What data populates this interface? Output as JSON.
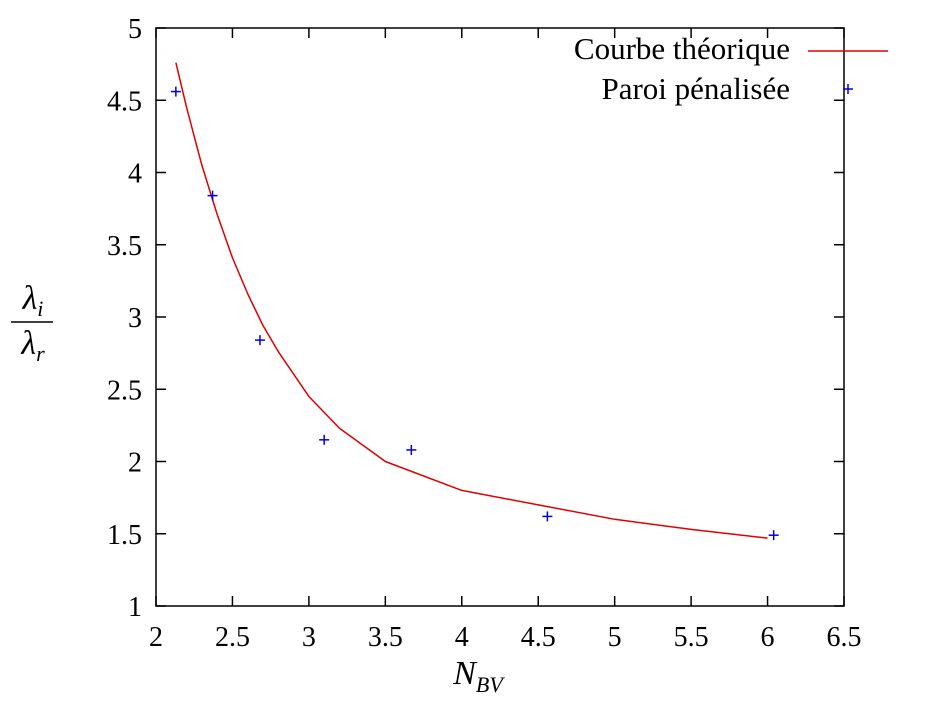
{
  "chart_data": {
    "type": "line",
    "title": "",
    "xlim": [
      2,
      6.5
    ],
    "ylim": [
      1,
      5
    ],
    "x_ticks": [
      2,
      2.5,
      3,
      3.5,
      4,
      4.5,
      5,
      5.5,
      6,
      6.5
    ],
    "y_ticks": [
      1,
      1.5,
      2,
      2.5,
      3,
      3.5,
      4,
      4.5,
      5
    ],
    "x_tick_labels": [
      "2",
      "2.5",
      "3",
      "3.5",
      "4",
      "4.5",
      "5",
      "5.5",
      "6",
      "6.5"
    ],
    "y_tick_labels": [
      "1",
      "1.5",
      "2",
      "2.5",
      "3",
      "3.5",
      "4",
      "4.5",
      "5"
    ],
    "xlabel": {
      "main": "N",
      "sub": "BV"
    },
    "ylabel": {
      "numerator_main": "λ",
      "numerator_sub": "i",
      "denominator_main": "λ",
      "denominator_sub": "r"
    },
    "grid": false,
    "legend_position": "top-right",
    "series": [
      {
        "name": "Courbe théorique",
        "kind": "line",
        "color": "#e00000",
        "x": [
          2.13,
          2.2,
          2.3,
          2.4,
          2.5,
          2.6,
          2.7,
          2.8,
          3.0,
          3.2,
          3.5,
          4.0,
          4.5,
          5.0,
          5.5,
          6.0
        ],
        "y": [
          4.76,
          4.45,
          4.05,
          3.71,
          3.41,
          3.16,
          2.94,
          2.76,
          2.45,
          2.23,
          2.0,
          1.8,
          1.7,
          1.6,
          1.53,
          1.47
        ]
      },
      {
        "name": "Paroi pénalisée",
        "kind": "scatter",
        "color": "#0000e0",
        "x": [
          2.13,
          2.37,
          2.68,
          3.1,
          3.67,
          4.56,
          6.04
        ],
        "y": [
          4.56,
          3.84,
          2.84,
          2.15,
          2.08,
          1.62,
          1.49
        ]
      }
    ]
  }
}
